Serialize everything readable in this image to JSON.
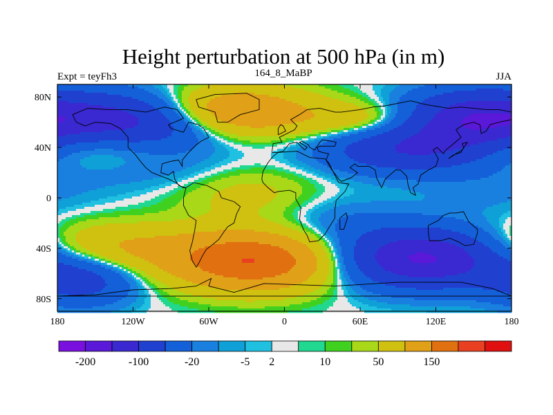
{
  "chart_data": {
    "type": "heatmap",
    "title": "Height perturbation at 500 hPa (in m)",
    "left_label": "Expt = teyFh3",
    "center_label": "164_8_MaBP",
    "right_label": "JJA",
    "x_ticks": [
      {
        "value": -180,
        "label": "180"
      },
      {
        "value": -120,
        "label": "120W"
      },
      {
        "value": -60,
        "label": "60W"
      },
      {
        "value": 0,
        "label": "0"
      },
      {
        "value": 60,
        "label": "60E"
      },
      {
        "value": 120,
        "label": "120E"
      },
      {
        "value": 180,
        "label": "180"
      }
    ],
    "y_ticks": [
      {
        "value": 80,
        "label": "80N"
      },
      {
        "value": 40,
        "label": "40N"
      },
      {
        "value": 0,
        "label": "0"
      },
      {
        "value": -40,
        "label": "40S"
      },
      {
        "value": -80,
        "label": "80S"
      }
    ],
    "xlim": [
      -180,
      180
    ],
    "ylim": [
      -90,
      90
    ],
    "colorbar": {
      "colors": [
        "#7a10e0",
        "#5a18d8",
        "#3a28d0",
        "#2040d0",
        "#1460d8",
        "#1a80e0",
        "#10a0d8",
        "#20c0e0",
        "#e8e8e8",
        "#20d890",
        "#40d020",
        "#a8d818",
        "#d0c010",
        "#e0a018",
        "#e07010",
        "#e84020",
        "#e01010"
      ],
      "labels": [
        "-200",
        "-100",
        "-20",
        "-5",
        "2",
        "10",
        "50",
        "150"
      ],
      "label_after_segment": [
        1,
        3,
        5,
        7,
        8,
        10,
        12,
        14
      ]
    },
    "anomaly_centers": [
      {
        "lon": -45,
        "lat": 68,
        "amp": 110,
        "sx": 45,
        "sy": 14
      },
      {
        "lon": -120,
        "lat": 60,
        "amp": -130,
        "sx": 50,
        "sy": 16
      },
      {
        "lon": 150,
        "lat": 62,
        "amp": -130,
        "sx": 40,
        "sy": 16
      },
      {
        "lon": 95,
        "lat": 38,
        "amp": -90,
        "sx": 45,
        "sy": 13
      },
      {
        "lon": -150,
        "lat": 42,
        "amp": 45,
        "sx": 40,
        "sy": 12
      },
      {
        "lon": 60,
        "lat": 62,
        "amp": 40,
        "sx": 35,
        "sy": 10
      },
      {
        "lon": -30,
        "lat": 5,
        "amp": 30,
        "sx": 40,
        "sy": 16
      },
      {
        "lon": -25,
        "lat": -50,
        "amp": 150,
        "sx": 45,
        "sy": 16
      },
      {
        "lon": -140,
        "lat": -40,
        "amp": 55,
        "sx": 50,
        "sy": 14
      },
      {
        "lon": 110,
        "lat": -48,
        "amp": -160,
        "sx": 45,
        "sy": 16
      },
      {
        "lon": -160,
        "lat": -65,
        "amp": -70,
        "sx": 30,
        "sy": 14
      },
      {
        "lon": 40,
        "lat": -20,
        "amp": -20,
        "sx": 40,
        "sy": 15
      },
      {
        "lon": -90,
        "lat": 20,
        "amp": -15,
        "sx": 60,
        "sy": 12
      },
      {
        "lon": 160,
        "lat": 5,
        "amp": -12,
        "sx": 40,
        "sy": 14
      }
    ],
    "coastlines": [
      [
        [
          -168,
          66
        ],
        [
          -156,
          71
        ],
        [
          -140,
          70
        ],
        [
          -125,
          70
        ],
        [
          -110,
          68
        ],
        [
          -95,
          72
        ],
        [
          -85,
          70
        ],
        [
          -80,
          63
        ],
        [
          -92,
          58
        ],
        [
          -90,
          55
        ],
        [
          -80,
          52
        ],
        [
          -76,
          60
        ],
        [
          -68,
          58
        ],
        [
          -64,
          55
        ],
        [
          -60,
          48
        ],
        [
          -66,
          45
        ],
        [
          -70,
          42
        ],
        [
          -76,
          36
        ],
        [
          -81,
          30
        ],
        [
          -81,
          25
        ],
        [
          -84,
          30
        ],
        [
          -90,
          29
        ],
        [
          -97,
          27
        ],
        [
          -98,
          20
        ],
        [
          -92,
          18
        ],
        [
          -88,
          21
        ],
        [
          -87,
          15
        ],
        [
          -84,
          10
        ],
        [
          -80,
          8
        ],
        [
          -78,
          8
        ],
        [
          -82,
          9
        ],
        [
          -86,
          12
        ],
        [
          -92,
          15
        ],
        [
          -105,
          20
        ],
        [
          -110,
          24
        ],
        [
          -115,
          30
        ],
        [
          -118,
          34
        ],
        [
          -124,
          40
        ],
        [
          -124,
          48
        ],
        [
          -130,
          55
        ],
        [
          -138,
          59
        ],
        [
          -150,
          60
        ],
        [
          -158,
          57
        ],
        [
          -165,
          60
        ],
        [
          -168,
          66
        ]
      ],
      [
        [
          -78,
          8
        ],
        [
          -72,
          12
        ],
        [
          -62,
          10
        ],
        [
          -52,
          5
        ],
        [
          -50,
          0
        ],
        [
          -40,
          -3
        ],
        [
          -35,
          -7
        ],
        [
          -38,
          -13
        ],
        [
          -40,
          -20
        ],
        [
          -45,
          -23
        ],
        [
          -48,
          -27
        ],
        [
          -52,
          -33
        ],
        [
          -58,
          -38
        ],
        [
          -62,
          -41
        ],
        [
          -65,
          -46
        ],
        [
          -68,
          -52
        ],
        [
          -70,
          -55
        ],
        [
          -73,
          -50
        ],
        [
          -75,
          -42
        ],
        [
          -73,
          -35
        ],
        [
          -71,
          -25
        ],
        [
          -70,
          -18
        ],
        [
          -76,
          -14
        ],
        [
          -80,
          -6
        ],
        [
          -80,
          0
        ],
        [
          -78,
          8
        ]
      ],
      [
        [
          -18,
          15
        ],
        [
          -17,
          21
        ],
        [
          -13,
          28
        ],
        [
          -9,
          33
        ],
        [
          -5,
          36
        ],
        [
          10,
          37
        ],
        [
          20,
          32
        ],
        [
          32,
          31
        ],
        [
          35,
          28
        ],
        [
          43,
          12
        ],
        [
          51,
          11
        ],
        [
          48,
          5
        ],
        [
          41,
          -2
        ],
        [
          40,
          -10
        ],
        [
          40,
          -16
        ],
        [
          35,
          -24
        ],
        [
          32,
          -29
        ],
        [
          27,
          -34
        ],
        [
          20,
          -35
        ],
        [
          18,
          -30
        ],
        [
          15,
          -25
        ],
        [
          12,
          -17
        ],
        [
          13,
          -8
        ],
        [
          9,
          -1
        ],
        [
          9,
          4
        ],
        [
          4,
          6
        ],
        [
          -5,
          5
        ],
        [
          -8,
          4
        ],
        [
          -13,
          8
        ],
        [
          -17,
          12
        ],
        [
          -18,
          15
        ]
      ],
      [
        [
          -10,
          36
        ],
        [
          -9,
          43
        ],
        [
          -2,
          44
        ],
        [
          -4,
          48
        ],
        [
          2,
          51
        ],
        [
          8,
          54
        ],
        [
          10,
          57
        ],
        [
          5,
          62
        ],
        [
          12,
          66
        ],
        [
          18,
          70
        ],
        [
          28,
          71
        ],
        [
          40,
          68
        ],
        [
          45,
          68
        ],
        [
          60,
          70
        ],
        [
          70,
          72
        ],
        [
          80,
          73
        ],
        [
          100,
          77
        ],
        [
          112,
          74
        ],
        [
          130,
          71
        ],
        [
          140,
          72
        ],
        [
          160,
          70
        ],
        [
          170,
          70
        ],
        [
          180,
          68
        ],
        [
          180,
          62
        ],
        [
          170,
          60
        ],
        [
          163,
          58
        ],
        [
          160,
          53
        ],
        [
          156,
          51
        ],
        [
          155,
          58
        ],
        [
          150,
          60
        ],
        [
          142,
          58
        ],
        [
          136,
          54
        ],
        [
          140,
          48
        ],
        [
          133,
          42
        ],
        [
          128,
          38
        ],
        [
          126,
          35
        ],
        [
          121,
          40
        ],
        [
          118,
          38
        ],
        [
          122,
          31
        ],
        [
          120,
          25
        ],
        [
          114,
          22
        ],
        [
          108,
          18
        ],
        [
          106,
          11
        ],
        [
          102,
          8
        ],
        [
          104,
          2
        ],
        [
          100,
          4
        ],
        [
          98,
          10
        ],
        [
          97,
          17
        ],
        [
          92,
          22
        ],
        [
          88,
          22
        ],
        [
          80,
          15
        ],
        [
          77,
          8
        ],
        [
          73,
          16
        ],
        [
          72,
          22
        ],
        [
          67,
          25
        ],
        [
          58,
          25
        ],
        [
          56,
          27
        ],
        [
          52,
          24
        ],
        [
          58,
          20
        ],
        [
          53,
          16
        ],
        [
          45,
          13
        ],
        [
          43,
          15
        ],
        [
          37,
          23
        ],
        [
          33,
          30
        ],
        [
          35,
          35
        ],
        [
          30,
          36
        ],
        [
          27,
          37
        ],
        [
          26,
          40
        ],
        [
          28,
          41
        ],
        [
          40,
          41
        ],
        [
          41,
          44
        ],
        [
          37,
          45
        ],
        [
          30,
          46
        ],
        [
          28,
          44
        ],
        [
          24,
          38
        ],
        [
          20,
          40
        ],
        [
          19,
          42
        ],
        [
          14,
          45
        ],
        [
          12,
          44
        ],
        [
          18,
          40
        ],
        [
          16,
          38
        ],
        [
          10,
          44
        ],
        [
          4,
          43
        ],
        [
          -1,
          37
        ],
        [
          -6,
          36
        ],
        [
          -10,
          36
        ]
      ],
      [
        [
          -53,
          60
        ],
        [
          -45,
          60
        ],
        [
          -35,
          66
        ],
        [
          -20,
          70
        ],
        [
          -20,
          78
        ],
        [
          -30,
          83
        ],
        [
          -55,
          82
        ],
        [
          -70,
          78
        ],
        [
          -68,
          72
        ],
        [
          -55,
          68
        ],
        [
          -53,
          60
        ]
      ],
      [
        [
          114,
          -22
        ],
        [
          114,
          -27
        ],
        [
          115,
          -34
        ],
        [
          124,
          -34
        ],
        [
          131,
          -32
        ],
        [
          138,
          -35
        ],
        [
          143,
          -38
        ],
        [
          150,
          -37
        ],
        [
          153,
          -28
        ],
        [
          153,
          -25
        ],
        [
          146,
          -19
        ],
        [
          142,
          -11
        ],
        [
          136,
          -12
        ],
        [
          131,
          -12
        ],
        [
          126,
          -14
        ],
        [
          122,
          -18
        ],
        [
          114,
          -22
        ]
      ],
      [
        [
          44,
          -25
        ],
        [
          47,
          -25
        ],
        [
          50,
          -16
        ],
        [
          49,
          -12
        ],
        [
          44,
          -16
        ],
        [
          44,
          -25
        ]
      ],
      [
        [
          -16,
          -68
        ],
        [
          40,
          -70
        ],
        [
          90,
          -67
        ],
        [
          140,
          -67
        ],
        [
          165,
          -72
        ],
        [
          180,
          -78
        ],
        [
          -180,
          -78
        ],
        [
          -150,
          -77
        ],
        [
          -120,
          -73
        ],
        [
          -90,
          -72
        ],
        [
          -70,
          -70
        ],
        [
          -58,
          -64
        ],
        [
          -60,
          -70
        ],
        [
          -40,
          -75
        ],
        [
          -16,
          -68
        ]
      ],
      [
        [
          130,
          31
        ],
        [
          134,
          34
        ],
        [
          140,
          36
        ],
        [
          142,
          40
        ],
        [
          141,
          43
        ],
        [
          145,
          44
        ],
        [
          141,
          38
        ],
        [
          136,
          35
        ],
        [
          130,
          31
        ]
      ],
      [
        [
          -5,
          50
        ],
        [
          -5,
          55
        ],
        [
          -3,
          58
        ],
        [
          -1,
          57
        ],
        [
          1,
          53
        ],
        [
          -5,
          50
        ]
      ]
    ]
  }
}
